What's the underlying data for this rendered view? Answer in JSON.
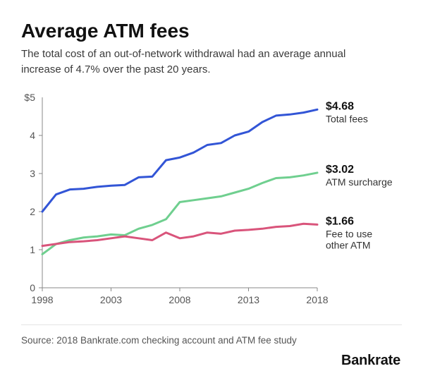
{
  "title": "Average ATM fees",
  "subtitle": "The total cost of an out-of-network withdrawal had an average annual increase of 4.7% over the past 20 years.",
  "source": "Source: 2018 Bankrate.com checking account and ATM fee study",
  "brand": "Bankrate",
  "chart": {
    "type": "line",
    "background_color": "#ffffff",
    "axis_color": "#555555",
    "axis_line_color": "#888888",
    "axis_fontsize": 14,
    "x": {
      "min": 1998,
      "max": 2018,
      "ticks": [
        1998,
        2003,
        2008,
        2013,
        2018
      ]
    },
    "y": {
      "min": 0,
      "max": 5,
      "ticks": [
        0,
        1,
        2,
        3,
        4
      ],
      "top_tick_label": "$5"
    },
    "line_width": 3,
    "series": [
      {
        "id": "total",
        "label": "Total fees",
        "end_value_label": "$4.68",
        "color": "#3255d6",
        "values": [
          2.0,
          2.45,
          2.58,
          2.6,
          2.65,
          2.68,
          2.7,
          2.9,
          2.92,
          3.35,
          3.42,
          3.55,
          3.75,
          3.8,
          4.0,
          4.1,
          4.35,
          4.52,
          4.55,
          4.6,
          4.68
        ]
      },
      {
        "id": "surcharge",
        "label": "ATM surcharge",
        "end_value_label": "$3.02",
        "color": "#6fcf8f",
        "values": [
          0.88,
          1.15,
          1.25,
          1.32,
          1.35,
          1.4,
          1.38,
          1.55,
          1.65,
          1.8,
          2.25,
          2.3,
          2.35,
          2.4,
          2.5,
          2.6,
          2.75,
          2.88,
          2.9,
          2.95,
          3.02
        ]
      },
      {
        "id": "other",
        "label": "Fee to use other ATM",
        "end_value_label": "$1.66",
        "color": "#d9547b",
        "values": [
          1.1,
          1.15,
          1.2,
          1.22,
          1.25,
          1.3,
          1.35,
          1.3,
          1.25,
          1.45,
          1.3,
          1.35,
          1.45,
          1.42,
          1.5,
          1.52,
          1.55,
          1.6,
          1.62,
          1.68,
          1.66
        ]
      }
    ],
    "end_label_fontsize": 16,
    "end_label_name_fontsize": 14
  }
}
